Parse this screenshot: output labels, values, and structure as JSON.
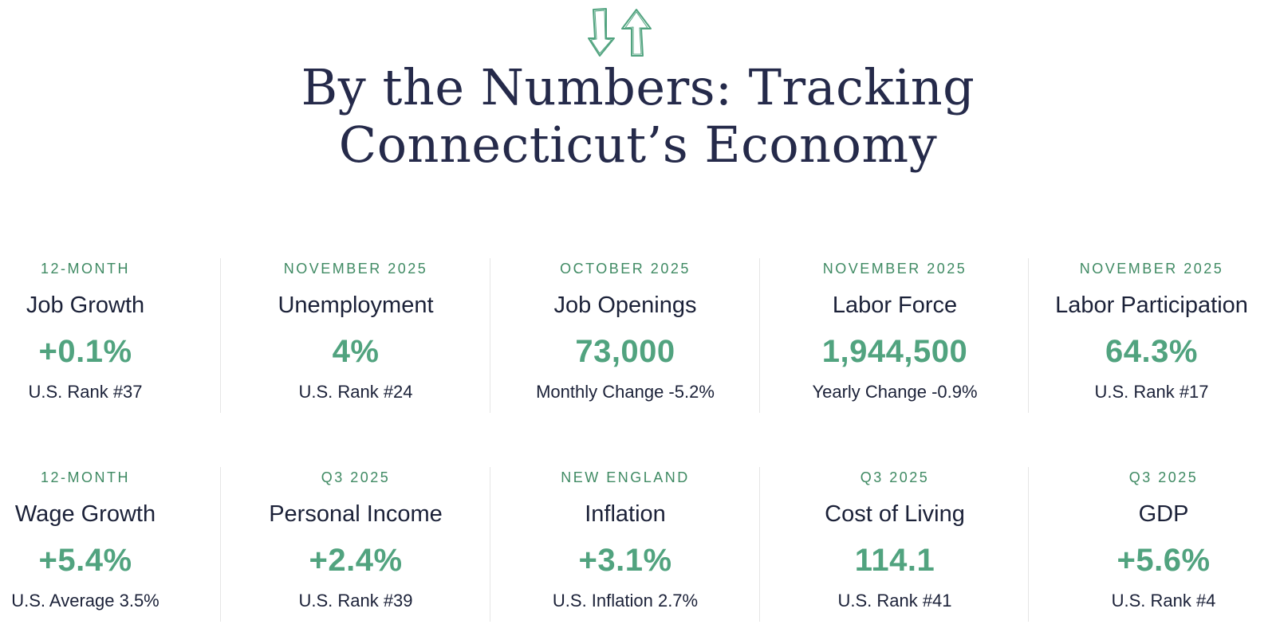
{
  "header": {
    "title_line1": "By the Numbers: Tracking",
    "title_line2": "Connecticut’s Economy"
  },
  "colors": {
    "accent_green": "#51a37f",
    "eyebrow_green": "#3f8a63",
    "navy": "#252a4a"
  },
  "logo_icon": "down-up-arrows-icon",
  "metrics_row1": [
    {
      "eyebrow": "12-MONTH",
      "label": "Job Growth",
      "value": "+0.1%",
      "note": "U.S. Rank #37"
    },
    {
      "eyebrow": "NOVEMBER 2025",
      "label": "Unemployment",
      "value": "4%",
      "note": "U.S. Rank #24"
    },
    {
      "eyebrow": "OCTOBER 2025",
      "label": "Job Openings",
      "value": "73,000",
      "note": "Monthly Change -5.2%"
    },
    {
      "eyebrow": "NOVEMBER 2025",
      "label": "Labor Force",
      "value": "1,944,500",
      "note": "Yearly Change -0.9%"
    },
    {
      "eyebrow": "NOVEMBER 2025",
      "label": "Labor Participation",
      "value": "64.3%",
      "note": "U.S. Rank #17"
    }
  ],
  "metrics_row2": [
    {
      "eyebrow": "12-MONTH",
      "label": "Wage Growth",
      "value": "+5.4%",
      "note": "U.S. Average 3.5%"
    },
    {
      "eyebrow": "Q3 2025",
      "label": "Personal Income",
      "value": "+2.4%",
      "note": "U.S. Rank #39"
    },
    {
      "eyebrow": "NEW ENGLAND",
      "label": "Inflation",
      "value": "+3.1%",
      "note": "U.S. Inflation 2.7%"
    },
    {
      "eyebrow": "Q3 2025",
      "label": "Cost of Living",
      "value": "114.1",
      "note": "U.S. Rank #41"
    },
    {
      "eyebrow": "Q3 2025",
      "label": "GDP",
      "value": "+5.6%",
      "note": "U.S. Rank #4"
    }
  ]
}
